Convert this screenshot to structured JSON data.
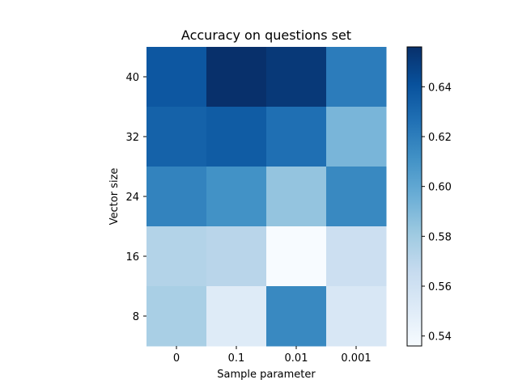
{
  "chart_data": {
    "type": "heatmap",
    "title": "Accuracy on questions set",
    "xlabel": "Sample parameter",
    "ylabel": "Vector size",
    "x_categories": [
      "0",
      "0.1",
      "0.01",
      "0.001"
    ],
    "y_categories": [
      "40",
      "32",
      "24",
      "16",
      "8"
    ],
    "values": [
      [
        0.638,
        0.656,
        0.652,
        0.621
      ],
      [
        0.633,
        0.636,
        0.627,
        0.592
      ],
      [
        0.618,
        0.611,
        0.584,
        0.615
      ],
      [
        0.573,
        0.571,
        0.536,
        0.562
      ],
      [
        0.577,
        0.551,
        0.615,
        0.555
      ]
    ],
    "colormap": "Blues",
    "colorbar": {
      "range": [
        0.536,
        0.656
      ],
      "ticks": [
        "0.54",
        "0.56",
        "0.58",
        "0.60",
        "0.62",
        "0.64"
      ]
    },
    "grid": false
  }
}
